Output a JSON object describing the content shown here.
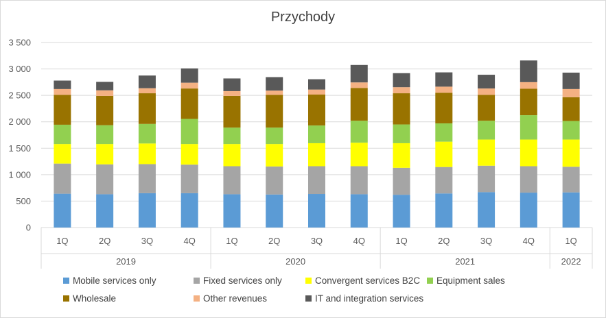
{
  "chart_data": {
    "type": "bar",
    "stacked": true,
    "title": "Przychody",
    "xlabel": "",
    "ylabel": "",
    "ylim": [
      0,
      3500
    ],
    "yticks": [
      "0",
      "500",
      "1 000",
      "1 500",
      "2 000",
      "2 500",
      "3 000",
      "3 500"
    ],
    "grid": true,
    "legend_position": "bottom",
    "categories": [
      "1Q",
      "2Q",
      "3Q",
      "4Q",
      "1Q",
      "2Q",
      "3Q",
      "4Q",
      "1Q",
      "2Q",
      "3Q",
      "4Q",
      "1Q"
    ],
    "year_groups": [
      {
        "label": "2019",
        "count": 4
      },
      {
        "label": "2020",
        "count": 4
      },
      {
        "label": "2021",
        "count": 4
      },
      {
        "label": "2022",
        "count": 1
      }
    ],
    "series": [
      {
        "name": "Mobile services only",
        "color": "#5b9bd5",
        "values": [
          640,
          630,
          650,
          650,
          630,
          625,
          635,
          630,
          620,
          645,
          670,
          660,
          665
        ]
      },
      {
        "name": "Fixed services only",
        "color": "#a5a5a5",
        "values": [
          570,
          565,
          550,
          540,
          530,
          530,
          525,
          530,
          510,
          500,
          500,
          500,
          485
        ]
      },
      {
        "name": "Convergent services B2C",
        "color": "#ffff00",
        "values": [
          370,
          385,
          390,
          390,
          420,
          425,
          435,
          445,
          465,
          480,
          495,
          505,
          515
        ]
      },
      {
        "name": "Equipment sales",
        "color": "#92d050",
        "values": [
          365,
          355,
          370,
          475,
          310,
          310,
          335,
          415,
          355,
          345,
          355,
          460,
          350
        ]
      },
      {
        "name": "Wholesale",
        "color": "#997300",
        "values": [
          565,
          555,
          580,
          575,
          600,
          620,
          585,
          620,
          590,
          580,
          490,
          500,
          450
        ]
      },
      {
        "name": "Other revenues",
        "color": "#f4b183",
        "values": [
          110,
          105,
          95,
          110,
          90,
          80,
          95,
          105,
          115,
          115,
          120,
          125,
          155
        ]
      },
      {
        "name": "IT and integration services",
        "color": "#595959",
        "values": [
          160,
          160,
          240,
          270,
          240,
          255,
          195,
          330,
          265,
          270,
          260,
          410,
          310
        ]
      }
    ]
  }
}
